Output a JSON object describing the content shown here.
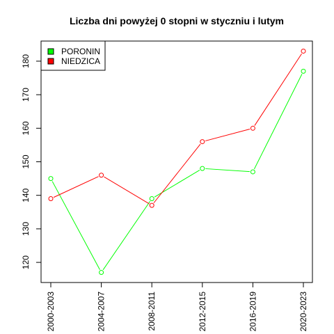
{
  "chart_data": {
    "type": "line",
    "title": "Liczba dni powyżej 0 stopni w styczniu i lutym",
    "xlabel": "",
    "ylabel": "",
    "categories": [
      "2000-2003",
      "2004-2007",
      "2008-2011",
      "2012-2015",
      "2016-2019",
      "2020-2023"
    ],
    "ylim": [
      114,
      186
    ],
    "yticks": [
      120,
      130,
      140,
      150,
      160,
      170,
      180
    ],
    "grid": false,
    "legend_position": "top-left",
    "series": [
      {
        "name": "PORONIN",
        "color": "#00ff00",
        "values": [
          145,
          117,
          139,
          148,
          147,
          177
        ]
      },
      {
        "name": "NIEDZICA",
        "color": "#ff0000",
        "values": [
          139,
          146,
          137,
          156,
          160,
          183
        ]
      }
    ]
  }
}
